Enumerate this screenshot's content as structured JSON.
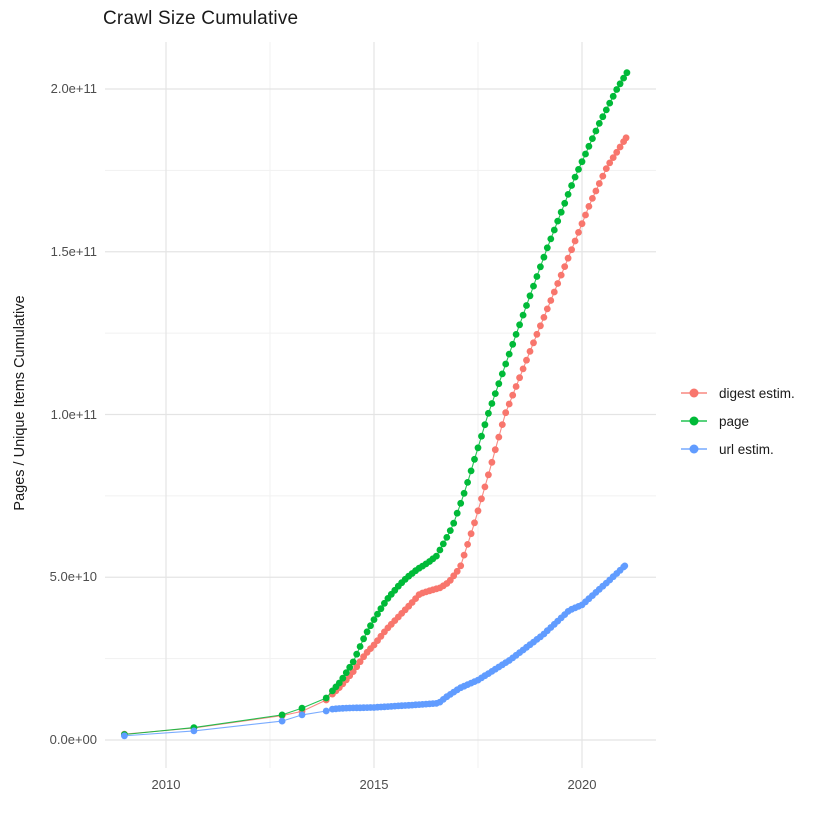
{
  "chart_data": {
    "type": "scatter",
    "title": "Crawl Size Cumulative",
    "xlabel": "",
    "ylabel": "Pages / Unique Items Cumulative",
    "grid": "on",
    "legend_position": "right",
    "x_ticks": [
      {
        "label": "2010",
        "year": 2010
      },
      {
        "label": "2015",
        "year": 2015
      },
      {
        "label": "2020",
        "year": 2020
      }
    ],
    "x_minor_years": [
      2012.5,
      2017.5
    ],
    "y_ticks": [
      {
        "label": "0.0e+00",
        "value_billions": 0
      },
      {
        "label": "5.0e+10",
        "value_billions": 50
      },
      {
        "label": "1.0e+11",
        "value_billions": 100
      },
      {
        "label": "1.5e+11",
        "value_billions": 150
      },
      {
        "label": "2.0e+11",
        "value_billions": 200
      }
    ],
    "y_minor_billions": [
      25,
      75,
      125,
      175
    ],
    "xlim_years": [
      2008.5,
      2021.8
    ],
    "ylim_billions": [
      -8,
      214
    ],
    "sampling": {
      "discrete_years": [
        2009.0,
        2010.67,
        2012.79,
        2013.27,
        2013.85
      ],
      "monthly_start": 2014.0,
      "monthly_end": 2021.0,
      "steps_per_year": 12
    },
    "series": [
      {
        "name": "digest estim.",
        "color": "#F8766D",
        "end_year": 2021.06,
        "anchors_year_billions": [
          [
            2009.0,
            1.8
          ],
          [
            2010.67,
            3.7
          ],
          [
            2012.79,
            7.5
          ],
          [
            2013.27,
            8.8
          ],
          [
            2013.85,
            12.3
          ],
          [
            2014.2,
            16.5
          ],
          [
            2014.5,
            21.0
          ],
          [
            2014.8,
            26.5
          ],
          [
            2015.0,
            29.2
          ],
          [
            2015.3,
            34.0
          ],
          [
            2015.6,
            38.0
          ],
          [
            2015.9,
            42.0
          ],
          [
            2016.1,
            44.9
          ],
          [
            2016.35,
            45.9
          ],
          [
            2016.6,
            46.8
          ],
          [
            2016.8,
            48.5
          ],
          [
            2017.07,
            53.0
          ],
          [
            2017.4,
            66.0
          ],
          [
            2017.74,
            81.0
          ],
          [
            2018.15,
            100.0
          ],
          [
            2018.8,
            121.0
          ],
          [
            2019.73,
            150.0
          ],
          [
            2020.2,
            165.0
          ],
          [
            2020.6,
            176.0
          ],
          [
            2021.06,
            185.0
          ]
        ]
      },
      {
        "name": "page",
        "color": "#00BA38",
        "end_year": 2021.08,
        "anchors_year_billions": [
          [
            2009.0,
            1.7
          ],
          [
            2010.67,
            3.8
          ],
          [
            2012.79,
            7.7
          ],
          [
            2013.27,
            9.8
          ],
          [
            2013.85,
            12.9
          ],
          [
            2014.2,
            18.0
          ],
          [
            2014.5,
            24.0
          ],
          [
            2014.8,
            32.5
          ],
          [
            2015.0,
            37.0
          ],
          [
            2015.3,
            43.0
          ],
          [
            2015.6,
            47.5
          ],
          [
            2015.8,
            50.0
          ],
          [
            2016.05,
            52.5
          ],
          [
            2016.3,
            54.5
          ],
          [
            2016.5,
            56.5
          ],
          [
            2016.7,
            61.0
          ],
          [
            2016.9,
            66.0
          ],
          [
            2017.2,
            77.0
          ],
          [
            2017.74,
            100.0
          ],
          [
            2018.4,
            124.0
          ],
          [
            2019.13,
            150.0
          ],
          [
            2019.8,
            172.0
          ],
          [
            2020.4,
            189.0
          ],
          [
            2020.84,
            200.0
          ],
          [
            2021.08,
            205.0
          ]
        ]
      },
      {
        "name": "url estim.",
        "color": "#619CFF",
        "end_year": 2021.03,
        "anchors_year_billions": [
          [
            2009.0,
            1.3
          ],
          [
            2010.67,
            2.8
          ],
          [
            2012.79,
            5.8
          ],
          [
            2013.27,
            7.7
          ],
          [
            2013.85,
            8.9
          ],
          [
            2014.0,
            9.5
          ],
          [
            2014.3,
            9.8
          ],
          [
            2015.0,
            10.0
          ],
          [
            2015.5,
            10.4
          ],
          [
            2016.0,
            10.8
          ],
          [
            2016.55,
            11.3
          ],
          [
            2016.62,
            12.0
          ],
          [
            2016.75,
            13.3
          ],
          [
            2017.07,
            16.0
          ],
          [
            2017.5,
            18.4
          ],
          [
            2018.27,
            24.6
          ],
          [
            2019.06,
            32.3
          ],
          [
            2019.7,
            39.9
          ],
          [
            2020.0,
            41.5
          ],
          [
            2020.67,
            49.2
          ],
          [
            2021.03,
            53.5
          ]
        ]
      }
    ],
    "legend": [
      {
        "label": "digest estim.",
        "color": "#F8766D"
      },
      {
        "label": "page",
        "color": "#00BA38"
      },
      {
        "label": "url estim.",
        "color": "#619CFF"
      }
    ],
    "style": {
      "grid_major_color": "#E4E4E4",
      "grid_minor_color": "#F1F1F1",
      "point_radius": 3.4,
      "line_width": 1.1
    }
  }
}
